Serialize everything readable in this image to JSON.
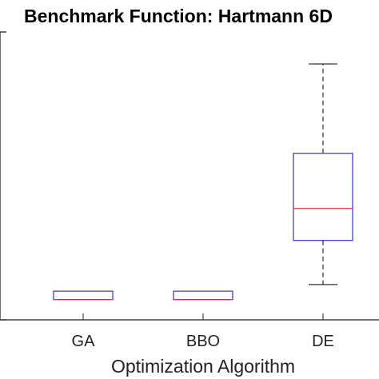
{
  "chart_data": {
    "type": "box",
    "title": "Benchmark Function: Hartmann 6D",
    "xlabel": "Optimization Algorithm",
    "ylabel": "",
    "categories": [
      "GA",
      "BBO",
      "DE"
    ],
    "series": [
      {
        "boxes": [
          {
            "category": "GA",
            "whisker_low": 0.17,
            "q1": 0.17,
            "median": 0.17,
            "q3": 0.55,
            "whisker_high": 0.55
          },
          {
            "category": "BBO",
            "whisker_low": 0.17,
            "q1": 0.17,
            "median": 0.17,
            "q3": 0.55,
            "whisker_high": 0.55
          },
          {
            "category": "DE",
            "whisker_low": 0.85,
            "q1": 2.85,
            "median": 4.3,
            "q3": 6.8,
            "whisker_high": 10.85
          }
        ]
      }
    ],
    "ylim": [
      -0.75,
      12.3
    ],
    "grid": false,
    "colors": {
      "box_edge": "#3333cc",
      "median": "#cc3333",
      "whisker": "#000000",
      "axes": "#444444"
    }
  }
}
